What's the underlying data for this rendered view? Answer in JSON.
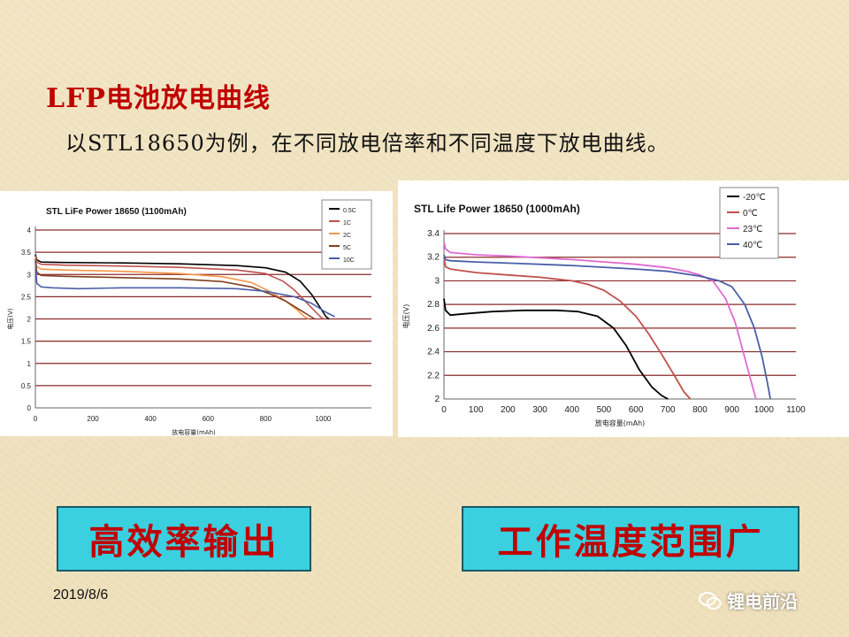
{
  "slide": {
    "title": "LFP电池放电曲线",
    "subtitle": "以STL18650为例，在不同放电倍率和不同温度下放电曲线。",
    "callout_left": "高效率输出",
    "callout_right": "工作温度范围广",
    "date": "2019/8/6",
    "watermark": "锂电前沿",
    "colors": {
      "title": "#c00000",
      "callout_bg": "#3ad0e0",
      "background": "#f1e4c2"
    }
  },
  "chart_data": [
    {
      "type": "line",
      "title": "STL LiFe Power 18650 (1100mAh)",
      "xlabel": "放电容量(mAh)",
      "ylabel": "电压(V)",
      "xlim": [
        0,
        1100
      ],
      "ylim": [
        0,
        4
      ],
      "xticks": [
        "0",
        "200",
        "400",
        "600",
        "800",
        "1000"
      ],
      "yticks": [
        "0",
        "0.5",
        "1",
        "1.5",
        "2",
        "2.5",
        "3",
        "3.5",
        "4"
      ],
      "grid": true,
      "legend": "top-right",
      "series": [
        {
          "name": "0.5C",
          "color": "#000000",
          "x": [
            0,
            5,
            20,
            100,
            300,
            500,
            700,
            800,
            870,
            920,
            960,
            990,
            1010,
            1020
          ],
          "y": [
            3.45,
            3.33,
            3.28,
            3.27,
            3.26,
            3.24,
            3.2,
            3.15,
            3.05,
            2.85,
            2.55,
            2.25,
            2.05,
            2.0
          ]
        },
        {
          "name": "1C",
          "color": "#c0504d",
          "x": [
            0,
            5,
            20,
            100,
            300,
            500,
            700,
            800,
            860,
            900,
            930,
            960,
            990,
            1000
          ],
          "y": [
            3.42,
            3.28,
            3.23,
            3.21,
            3.19,
            3.16,
            3.1,
            3.02,
            2.85,
            2.65,
            2.45,
            2.25,
            2.05,
            2.0
          ]
        },
        {
          "name": "2C",
          "color": "#f79646",
          "x": [
            0,
            5,
            20,
            100,
            300,
            500,
            650,
            750,
            820,
            870,
            910,
            935,
            950
          ],
          "y": [
            3.38,
            3.18,
            3.12,
            3.1,
            3.07,
            3.02,
            2.95,
            2.82,
            2.6,
            2.4,
            2.2,
            2.05,
            2.0
          ]
        },
        {
          "name": "5C",
          "color": "#7f3f1f",
          "x": [
            0,
            5,
            20,
            100,
            300,
            500,
            650,
            750,
            820,
            870,
            920,
            950,
            970
          ],
          "y": [
            3.35,
            3.05,
            2.98,
            2.96,
            2.93,
            2.9,
            2.84,
            2.72,
            2.55,
            2.4,
            2.2,
            2.08,
            2.0
          ]
        },
        {
          "name": "10C",
          "color": "#4a5fa8",
          "x": [
            0,
            5,
            20,
            60,
            150,
            300,
            500,
            700,
            800,
            900,
            960,
            1010,
            1040
          ],
          "y": [
            3.3,
            2.8,
            2.72,
            2.7,
            2.68,
            2.7,
            2.7,
            2.68,
            2.62,
            2.5,
            2.35,
            2.15,
            2.05
          ]
        }
      ]
    },
    {
      "type": "line",
      "title": "STL Life Power 18650 (1000mAh)",
      "xlabel": "放电容量(mAh)",
      "ylabel": "电压(V)",
      "xlim": [
        0,
        1100
      ],
      "ylim": [
        2,
        3.4
      ],
      "xticks": [
        "0",
        "100",
        "200",
        "300",
        "400",
        "500",
        "600",
        "700",
        "800",
        "900",
        "1000",
        "1100"
      ],
      "yticks": [
        "2",
        "2.2",
        "2.4",
        "2.6",
        "2.8",
        "3",
        "3.2",
        "3.4"
      ],
      "grid": true,
      "legend": "top-right",
      "series": [
        {
          "name": "-20℃",
          "color": "#000000",
          "x": [
            0,
            5,
            20,
            60,
            150,
            250,
            350,
            420,
            480,
            530,
            570,
            610,
            650,
            680,
            700
          ],
          "y": [
            2.85,
            2.75,
            2.71,
            2.72,
            2.74,
            2.75,
            2.75,
            2.74,
            2.7,
            2.6,
            2.45,
            2.25,
            2.1,
            2.03,
            2.0
          ]
        },
        {
          "name": "0℃",
          "color": "#c0504d",
          "x": [
            0,
            5,
            20,
            100,
            200,
            300,
            400,
            450,
            500,
            550,
            600,
            640,
            680,
            720,
            750,
            770
          ],
          "y": [
            3.2,
            3.12,
            3.1,
            3.07,
            3.05,
            3.03,
            3.0,
            2.97,
            2.92,
            2.83,
            2.7,
            2.55,
            2.38,
            2.2,
            2.06,
            2.0
          ]
        },
        {
          "name": "23℃",
          "color": "#e06ad1",
          "x": [
            0,
            5,
            20,
            100,
            200,
            400,
            600,
            700,
            760,
            800,
            840,
            880,
            910,
            940,
            960,
            975
          ],
          "y": [
            3.33,
            3.27,
            3.24,
            3.22,
            3.21,
            3.18,
            3.14,
            3.11,
            3.08,
            3.05,
            3.0,
            2.85,
            2.65,
            2.35,
            2.15,
            2.0
          ]
        },
        {
          "name": "40℃",
          "color": "#4a5fa8",
          "x": [
            0,
            5,
            20,
            100,
            200,
            400,
            600,
            700,
            800,
            860,
            900,
            940,
            970,
            995,
            1010,
            1020
          ],
          "y": [
            3.22,
            3.18,
            3.17,
            3.16,
            3.15,
            3.13,
            3.1,
            3.08,
            3.04,
            3.0,
            2.95,
            2.8,
            2.6,
            2.35,
            2.15,
            2.0
          ]
        }
      ]
    }
  ]
}
